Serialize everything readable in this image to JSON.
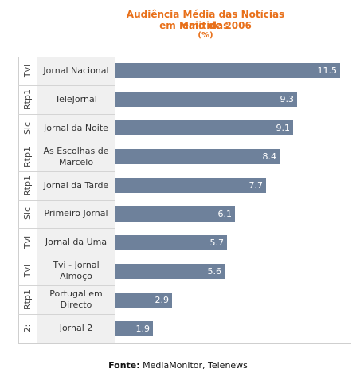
{
  "chart_data": {
    "type": "bar",
    "orientation": "horizontal",
    "title": "Audiência Média das Notícias emitidas",
    "title_line2": "em Maio de 2006",
    "subtitle": "(%)",
    "categories": [
      {
        "channel": "Tvi",
        "lines": [
          "Jornal Nacional"
        ],
        "value": 11.5
      },
      {
        "channel": "Rtp1",
        "lines": [
          "TeleJornal"
        ],
        "value": 9.3
      },
      {
        "channel": "Sic",
        "lines": [
          "Jornal da Noite"
        ],
        "value": 9.1
      },
      {
        "channel": "Rtp1",
        "lines": [
          "As Escolhas de",
          "Marcelo"
        ],
        "value": 8.4
      },
      {
        "channel": "Rtp1",
        "lines": [
          "Jornal da Tarde"
        ],
        "value": 7.7
      },
      {
        "channel": "Sic",
        "lines": [
          "Primeiro Jornal"
        ],
        "value": 6.1
      },
      {
        "channel": "Tvi",
        "lines": [
          "Jornal da Uma"
        ],
        "value": 5.7
      },
      {
        "channel": "Tvi",
        "lines": [
          "Tvi - Jornal",
          "Almoço"
        ],
        "value": 5.6
      },
      {
        "channel": "Rtp1",
        "lines": [
          "Portugal em",
          "Directo"
        ],
        "value": 2.9
      },
      {
        "channel": "2:",
        "lines": [
          "Jornal 2"
        ],
        "value": 1.9
      }
    ],
    "xlim": [
      0,
      11.5
    ],
    "bar_color": "#6e819b",
    "title_color": "#e8701a",
    "grid": false
  },
  "source_label": "Fonte:",
  "source_text": "MediaMonitor, Telenews"
}
